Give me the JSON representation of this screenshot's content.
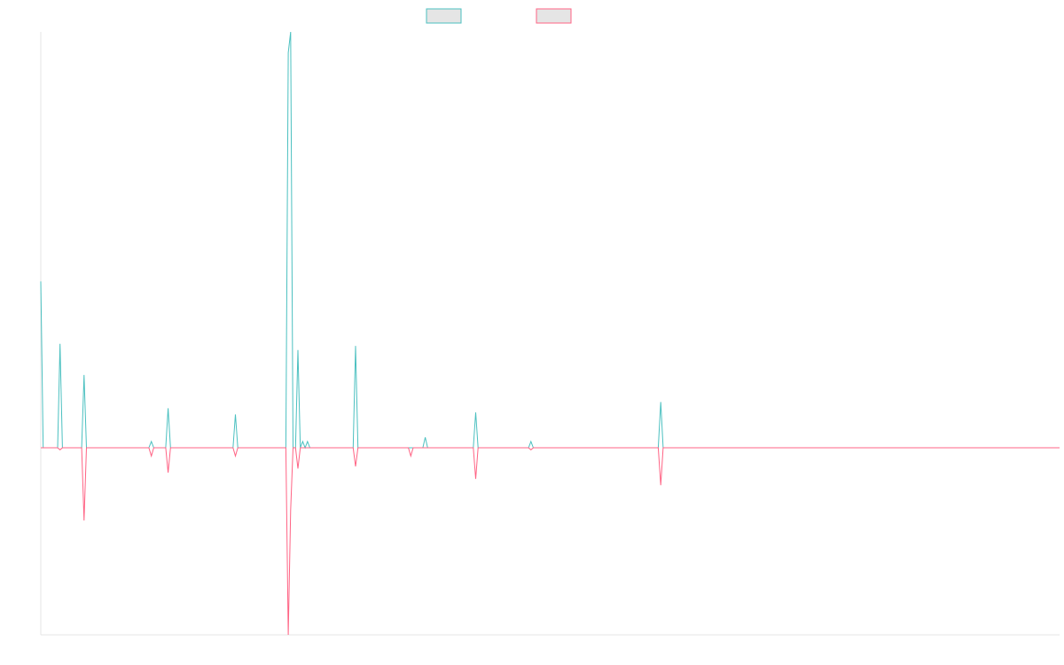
{
  "chart_data": {
    "type": "line",
    "title": "",
    "xlabel": "",
    "ylabel": "",
    "x_count": 425,
    "ylim": [
      -90,
      200
    ],
    "grid": false,
    "legend_position": "top-center",
    "series": [
      {
        "color": "#4bc0c0",
        "fill": "#e5e5e5",
        "legend_label": "",
        "values": [
          [
            0,
            80
          ],
          [
            1,
            0
          ],
          [
            7,
            0
          ],
          [
            8,
            50
          ],
          [
            9,
            0
          ],
          [
            17,
            0
          ],
          [
            18,
            35
          ],
          [
            19,
            0
          ],
          [
            45,
            0
          ],
          [
            46,
            3
          ],
          [
            47,
            0
          ],
          [
            52,
            0
          ],
          [
            53,
            19
          ],
          [
            54,
            0
          ],
          [
            80,
            0
          ],
          [
            81,
            16
          ],
          [
            82,
            0
          ],
          [
            102,
            0
          ],
          [
            103,
            190
          ],
          [
            104,
            200
          ],
          [
            105,
            0
          ],
          [
            106,
            0
          ],
          [
            107,
            47
          ],
          [
            108,
            0
          ],
          [
            109,
            3
          ],
          [
            110,
            0
          ],
          [
            111,
            3
          ],
          [
            112,
            0
          ],
          [
            130,
            0
          ],
          [
            131,
            49
          ],
          [
            132,
            0
          ],
          [
            152,
            0
          ],
          [
            153,
            0
          ],
          [
            154,
            0
          ],
          [
            155,
            0
          ],
          [
            159,
            0
          ],
          [
            160,
            5
          ],
          [
            161,
            0
          ],
          [
            180,
            0
          ],
          [
            181,
            17
          ],
          [
            182,
            0
          ],
          [
            203,
            0
          ],
          [
            204,
            3
          ],
          [
            205,
            0
          ],
          [
            257,
            0
          ],
          [
            258,
            22
          ],
          [
            259,
            0
          ],
          [
            424,
            0
          ]
        ]
      },
      {
        "color": "#ff6384",
        "fill": "#e5e5e5",
        "legend_label": "",
        "values": [
          [
            0,
            0
          ],
          [
            7,
            0
          ],
          [
            8,
            -1
          ],
          [
            9,
            0
          ],
          [
            17,
            0
          ],
          [
            18,
            -35
          ],
          [
            19,
            0
          ],
          [
            45,
            0
          ],
          [
            46,
            -4
          ],
          [
            47,
            0
          ],
          [
            52,
            0
          ],
          [
            53,
            -12
          ],
          [
            54,
            0
          ],
          [
            80,
            0
          ],
          [
            81,
            -4
          ],
          [
            82,
            0
          ],
          [
            102,
            0
          ],
          [
            103,
            -90
          ],
          [
            104,
            -30
          ],
          [
            105,
            0
          ],
          [
            106,
            0
          ],
          [
            107,
            -10
          ],
          [
            108,
            0
          ],
          [
            130,
            0
          ],
          [
            131,
            -9
          ],
          [
            132,
            0
          ],
          [
            153,
            0
          ],
          [
            154,
            -4
          ],
          [
            155,
            0
          ],
          [
            180,
            0
          ],
          [
            181,
            -15
          ],
          [
            182,
            0
          ],
          [
            203,
            0
          ],
          [
            204,
            -1
          ],
          [
            205,
            0
          ],
          [
            257,
            0
          ],
          [
            258,
            -18
          ],
          [
            259,
            0
          ],
          [
            424,
            0
          ]
        ]
      }
    ]
  }
}
